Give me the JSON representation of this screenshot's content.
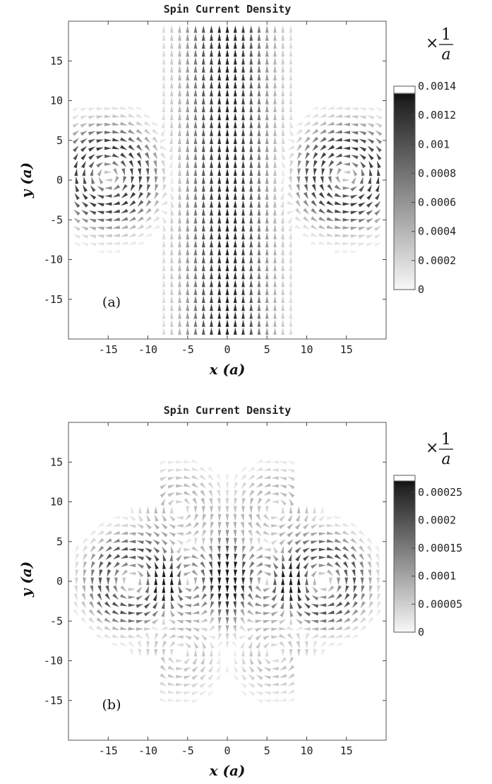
{
  "chart_data": [
    {
      "type": "vector-field",
      "panel_label": "(a)",
      "title": "Spin Current Density",
      "xlabel": "x (a)",
      "ylabel": "y (a)",
      "xlim": [
        -20,
        20
      ],
      "ylim": [
        -20,
        20
      ],
      "xticks": [
        -15,
        -10,
        -5,
        0,
        5,
        10,
        15
      ],
      "yticks": [
        15,
        10,
        5,
        0,
        -5,
        -10,
        -15
      ],
      "grid": false,
      "colorbar": {
        "unit_multiplier": "×",
        "unit_numerator": "1",
        "unit_denominator": "a",
        "ticks": [
          0,
          0.0002,
          0.0004,
          0.0006,
          0.0008,
          0.001,
          0.0012,
          0.0014
        ],
        "tick_labels": [
          "0",
          "0.0002",
          "0.0004",
          "0.0006",
          "0.0008",
          "0.001",
          "0.0012",
          "0.0014"
        ],
        "range": [
          0,
          0.0014
        ],
        "colormap": "white-to-black"
      },
      "field_description": "cross-shaped region; strong upward flow along vertical arm (|x|<8), circulating vortices in horizontal arms near (±15, 0)"
    },
    {
      "type": "vector-field",
      "panel_label": "(b)",
      "title": "Spin Current Density",
      "xlabel": "x (a)",
      "ylabel": "y (a)",
      "xlim": [
        -20,
        20
      ],
      "ylim": [
        -20,
        20
      ],
      "xticks": [
        -15,
        -10,
        -5,
        0,
        5,
        10,
        15
      ],
      "yticks": [
        15,
        10,
        5,
        0,
        -5,
        -10,
        -15
      ],
      "grid": false,
      "colorbar": {
        "unit_multiplier": "×",
        "unit_numerator": "1",
        "unit_denominator": "a",
        "ticks": [
          0,
          5e-05,
          0.0001,
          0.00015,
          0.0002,
          0.00025
        ],
        "tick_labels": [
          "0",
          "0.00005",
          "0.0001",
          "0.00015",
          "0.0002",
          "0.00025"
        ],
        "range": [
          0,
          0.00028
        ],
        "colormap": "white-to-black"
      },
      "field_description": "cross-shaped region; downward flow along center, vortices centered near (±12, 0)"
    }
  ]
}
